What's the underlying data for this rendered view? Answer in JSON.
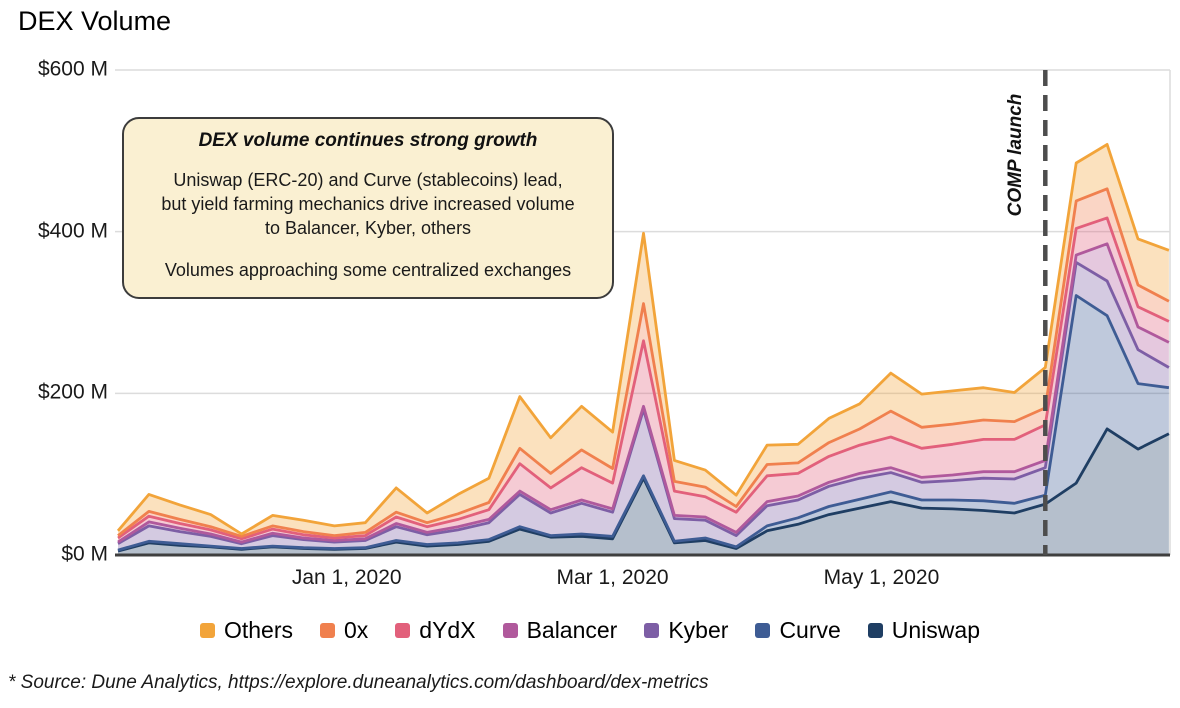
{
  "title": "DEX Volume",
  "footer": "* Source: Dune Analytics, https://explore.duneanalytics.com/dashboard/dex-metrics",
  "annotation_box": {
    "title": "DEX volume continues strong growth",
    "body1": "Uniswap (ERC-20) and Curve (stablecoins) lead, but yield farming mechanics drive increased volume to Balancer, Kyber, others",
    "body2": "Volumes approaching some centralized exchanges"
  },
  "event_marker": {
    "label": "COMP launch"
  },
  "chart_data": {
    "type": "area",
    "stacked": true,
    "title": "DEX Volume",
    "ylabel": "",
    "xlabel": "",
    "ylim": [
      0,
      600
    ],
    "y_unit": "$M",
    "grid": "horizontal",
    "legend_position": "bottom",
    "y_tick_values": [
      600,
      400,
      200,
      0
    ],
    "y_tick_labels": [
      "$600 M",
      "$400 M",
      "$200 M",
      "$0 M"
    ],
    "x_ticks": [
      {
        "label": "Jan 1, 2020",
        "week": 7.4
      },
      {
        "label": "Mar 1, 2020",
        "week": 16
      },
      {
        "label": "May 1, 2020",
        "week": 24.7
      }
    ],
    "event_line_week": 30,
    "event_line_color": "#4d4d4d",
    "x_points": 35,
    "x_unit": "week",
    "series": [
      {
        "name": "Others",
        "color": "#F2A43A",
        "values": [
          6,
          21,
          18,
          15,
          3,
          13,
          14,
          12,
          12,
          30,
          12,
          24,
          30,
          64,
          44,
          54,
          45,
          87,
          26,
          21,
          14,
          24,
          23,
          30,
          31,
          47,
          41,
          41,
          40,
          36,
          50,
          47,
          55,
          57,
          63
        ]
      },
      {
        "name": "0x",
        "color": "#F0804E",
        "values": [
          3,
          6,
          5,
          4,
          3,
          4,
          4,
          3,
          4,
          6,
          5,
          7,
          9,
          19,
          18,
          22,
          18,
          46,
          12,
          12,
          7,
          14,
          13,
          17,
          20,
          32,
          26,
          25,
          24,
          22,
          21,
          34,
          36,
          27,
          25
        ]
      },
      {
        "name": "dYdX",
        "color": "#E2607B",
        "values": [
          5,
          7,
          6,
          5,
          4,
          5,
          4,
          3,
          4,
          8,
          7,
          9,
          12,
          34,
          27,
          40,
          32,
          81,
          30,
          25,
          25,
          32,
          28,
          32,
          35,
          38,
          36,
          38,
          40,
          40,
          44,
          33,
          32,
          25,
          26
        ]
      },
      {
        "name": "Balancer",
        "color": "#B0599C",
        "values": [
          2,
          5,
          4,
          3,
          2,
          3,
          2,
          2,
          2,
          4,
          3,
          4,
          4,
          4,
          4,
          4,
          4,
          4,
          4,
          4,
          4,
          5,
          5,
          5,
          6,
          6,
          6,
          7,
          8,
          9,
          9,
          9,
          46,
          28,
          31
        ]
      },
      {
        "name": "Kyber",
        "color": "#7D5EA5",
        "values": [
          8,
          19,
          15,
          12,
          6,
          13,
          10,
          8,
          9,
          17,
          12,
          16,
          21,
          40,
          28,
          38,
          30,
          82,
          28,
          22,
          14,
          25,
          22,
          25,
          26,
          24,
          22,
          24,
          28,
          30,
          34,
          41,
          43,
          42,
          25
        ]
      },
      {
        "name": "Curve",
        "color": "#3E5C94",
        "values": [
          1,
          2,
          2,
          1,
          1,
          1,
          1,
          1,
          1,
          2,
          2,
          2,
          2,
          3,
          2,
          3,
          3,
          3,
          2,
          3,
          2,
          6,
          8,
          10,
          11,
          12,
          10,
          11,
          12,
          12,
          11,
          232,
          140,
          81,
          57
        ]
      },
      {
        "name": "Uniswap",
        "color": "#1F3E63",
        "values": [
          5,
          15,
          12,
          10,
          7,
          10,
          8,
          7,
          8,
          16,
          11,
          13,
          17,
          32,
          22,
          23,
          20,
          95,
          15,
          18,
          8,
          30,
          38,
          50,
          58,
          66,
          58,
          57,
          55,
          52,
          63,
          89,
          156,
          131,
          150
        ]
      }
    ]
  }
}
